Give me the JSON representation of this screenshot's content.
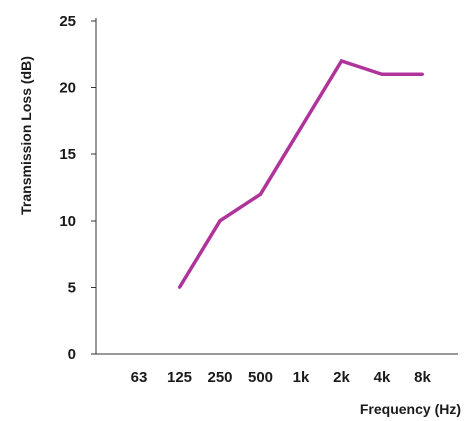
{
  "chart_data": {
    "type": "line",
    "title": "",
    "xlabel": "Frequency (Hz)",
    "ylabel": "Transmission Loss (dB)",
    "categories": [
      "63",
      "125",
      "250",
      "500",
      "1k",
      "2k",
      "4k",
      "8k"
    ],
    "ylim": [
      0,
      25
    ],
    "yticks": [
      0,
      5,
      10,
      15,
      20,
      25
    ],
    "grid": false,
    "series": [
      {
        "values": [
          null,
          5,
          10,
          12,
          17,
          22,
          21,
          21
        ],
        "color": "#b0339a"
      }
    ]
  }
}
